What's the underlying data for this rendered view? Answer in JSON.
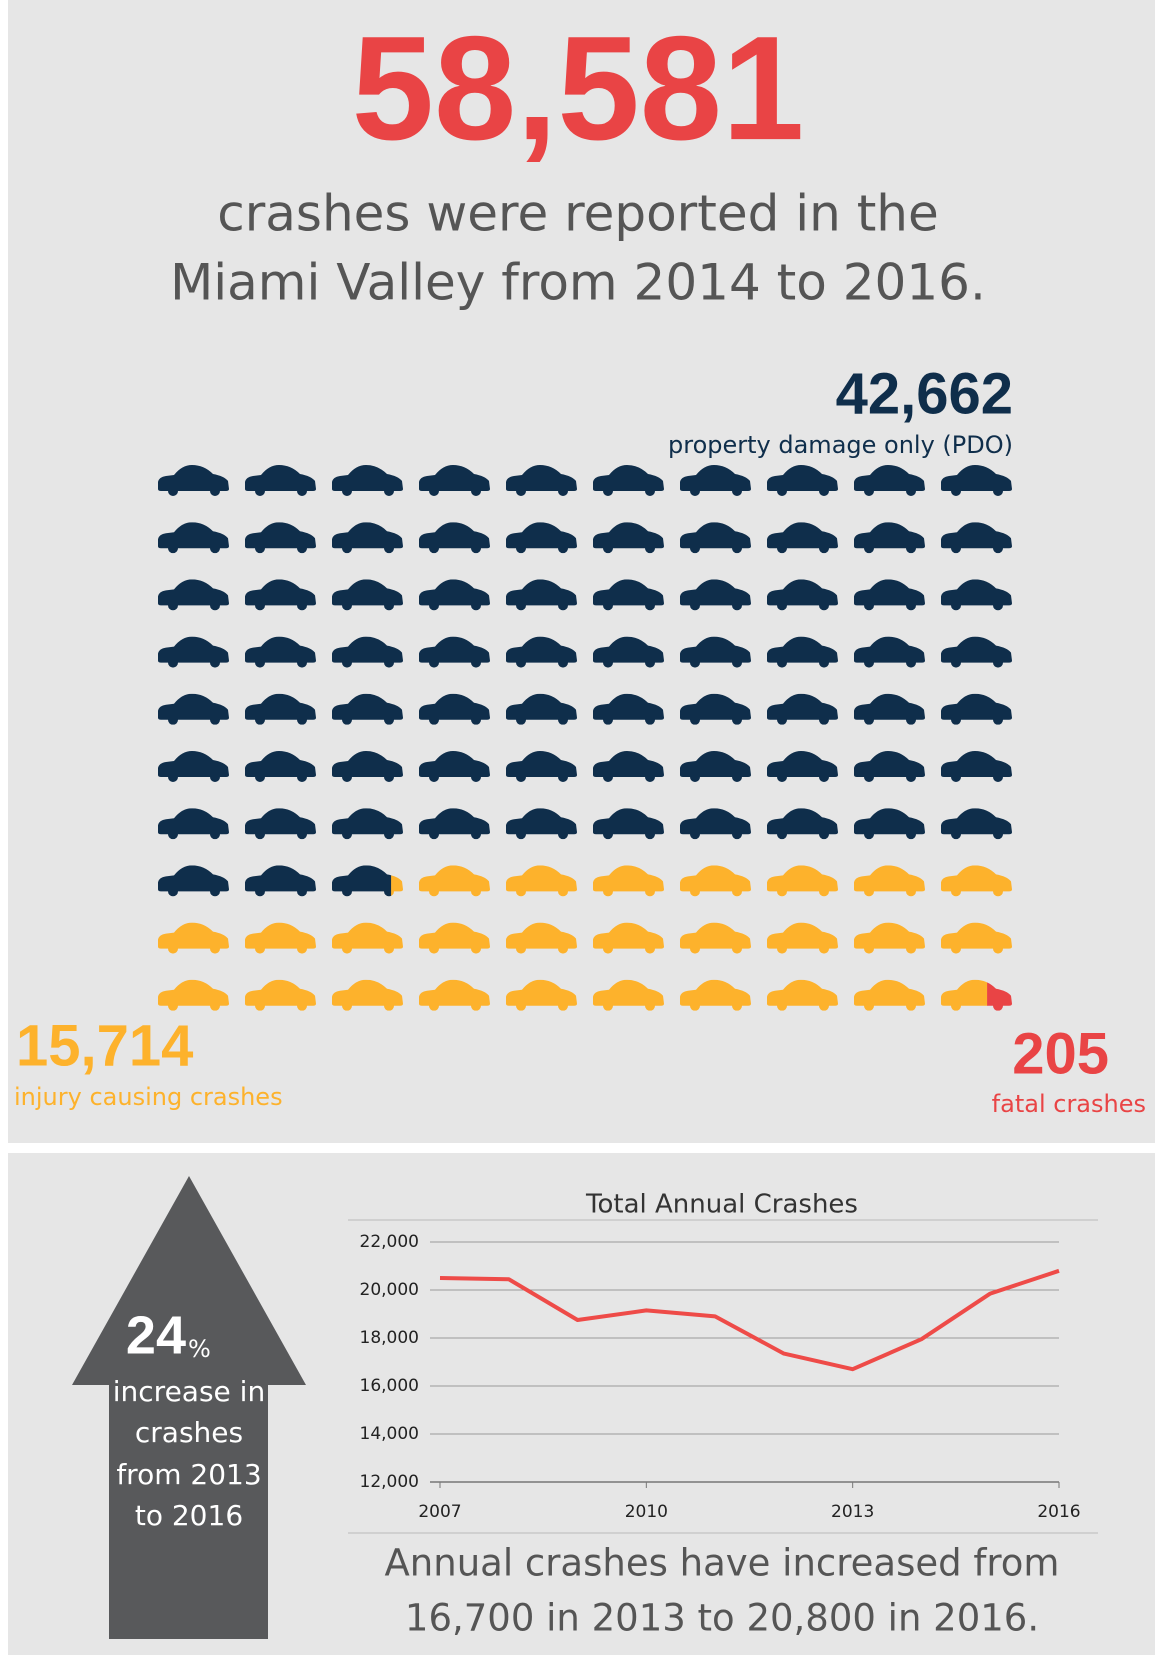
{
  "headline": {
    "number": "58,581",
    "lines": [
      "crashes were reported in the",
      "Miami Valley from 2014 to 2016."
    ]
  },
  "callout": {
    "number": "24",
    "unit": "%",
    "lines": [
      "increase in",
      "crashes",
      "from 2013",
      "to 2016"
    ]
  },
  "caption": {
    "lines": [
      "Annual crashes have increased from",
      "16,700 in 2013 to 20,800 in 2016."
    ]
  },
  "chart_data": [
    {
      "type": "waffle",
      "categories": [
        "property damage only (PDO)",
        "injury causing crashes",
        "fatal crashes"
      ],
      "values": [
        42662,
        15714,
        205
      ],
      "value_labels": [
        "42,662",
        "15,714",
        "205"
      ],
      "colors": [
        "#0f2e4b",
        "#fdb22c",
        "#e94445"
      ]
    },
    {
      "type": "line",
      "title": "Total Annual Crashes",
      "x": [
        2007,
        2008,
        2009,
        2010,
        2011,
        2012,
        2013,
        2014,
        2015,
        2016
      ],
      "values": [
        20500,
        20450,
        18750,
        19150,
        18900,
        17350,
        16700,
        17950,
        19850,
        20800
      ],
      "color": "#ee4b48",
      "xlim": [
        2007,
        2016
      ],
      "xticks": [
        2007,
        2010,
        2013,
        2016
      ],
      "ylim": [
        12000,
        22000
      ],
      "yticks": [
        {
          "value": 12000,
          "label": "12,000"
        },
        {
          "value": 14000,
          "label": "14,000"
        },
        {
          "value": 16000,
          "label": "16,000"
        },
        {
          "value": 18000,
          "label": "18,000"
        },
        {
          "value": 20000,
          "label": "20,000"
        },
        {
          "value": 22000,
          "label": "22,000"
        }
      ],
      "grid": true
    }
  ]
}
